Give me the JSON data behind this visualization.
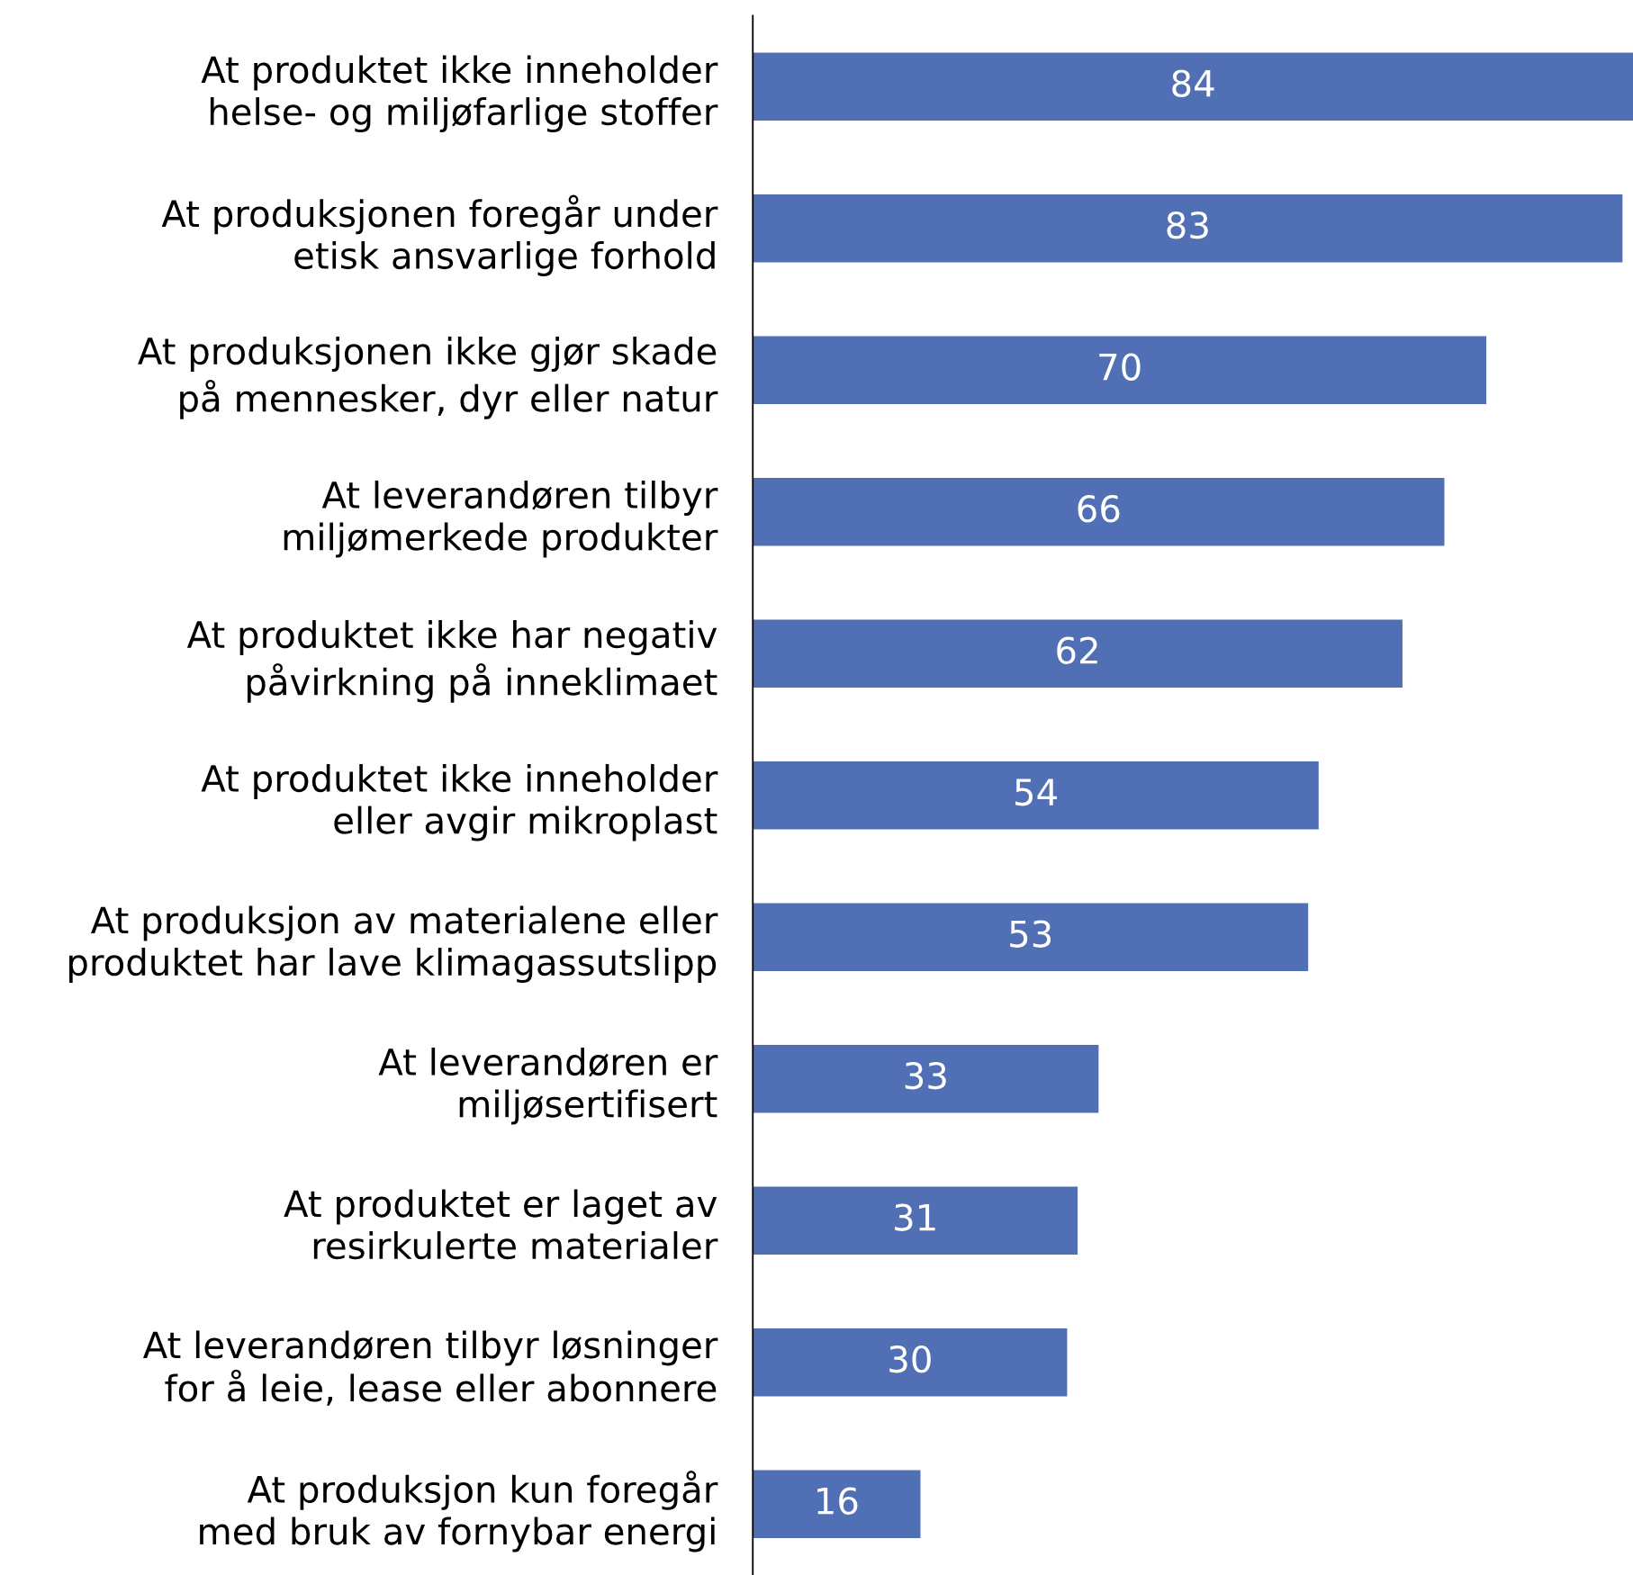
{
  "chart_data": {
    "type": "bar",
    "orientation": "horizontal",
    "categories": [
      "At produktet ikke inneholder\nhelse- og miljøfarlige stoffer",
      "At produksjonen foregår under\netisk ansvarlige forhold",
      "At produksjonen ikke gjør skade\npå mennesker, dyr eller natur",
      "At leverandøren tilbyr\nmiljømerkede produkter",
      "At produktet ikke har negativ\npåvirkning på inneklimaet",
      "At produktet ikke inneholder\neller avgir mikroplast",
      "At produksjon av materialene eller\nproduktet har lave klimagassutslipp",
      "At leverandøren er\nmiljøsertifisert",
      "At produktet er laget av\nresirkulerte materialer",
      "At leverandøren tilbyr løsninger\nfor å leie, lease eller abonnere",
      "At produksjon kun foregår\nmed bruk av fornybar energi"
    ],
    "values": [
      84,
      83,
      70,
      66,
      62,
      54,
      53,
      33,
      31,
      30,
      16
    ],
    "color": "#516fb4",
    "xlim": [
      0,
      84
    ],
    "data_labels": true,
    "grid": false,
    "tick_labels": "y"
  }
}
